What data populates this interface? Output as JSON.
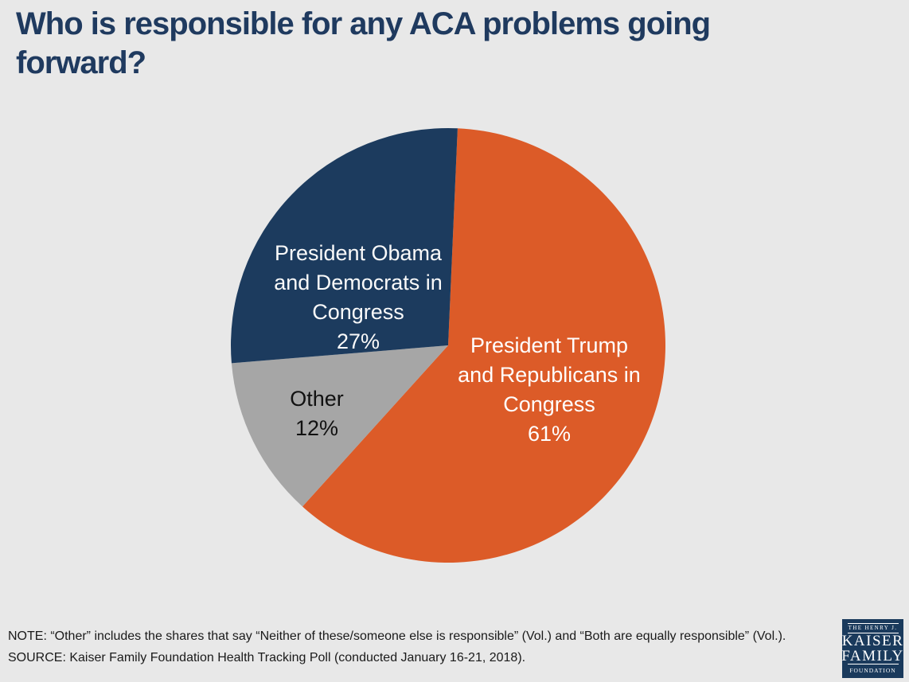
{
  "title_display": "Who is responsible for any ACA problems going\nforward?",
  "chart_data": {
    "type": "pie",
    "title": "Who is responsible for any ACA problems going forward?",
    "start_angle_deg": 2.5,
    "direction": "clockwise",
    "legend_position": "none",
    "labels_inside_slices": true,
    "slices": [
      {
        "id": "trump",
        "label": "President Trump and Republicans in Congress",
        "value": 61,
        "unit": "%",
        "color": "#dc5b28",
        "text_color": "#ffffff",
        "label_lines": "President Trump\nand Republicans in\nCongress\n61%"
      },
      {
        "id": "other",
        "label": "Other",
        "value": 12,
        "unit": "%",
        "color": "#a6a6a6",
        "text_color": "#111111",
        "label_lines": "Other\n12%"
      },
      {
        "id": "obama",
        "label": "President Obama and Democrats in Congress",
        "value": 27,
        "unit": "%",
        "color": "#1c3b5e",
        "text_color": "#fafafa",
        "label_lines": "President Obama\nand Democrats in\nCongress\n27%"
      }
    ]
  },
  "footer": {
    "note": "NOTE: “Other” includes the shares that say “Neither of these/someone else is responsible” (Vol.) and “Both are equally responsible” (Vol.).",
    "source": "SOURCE: Kaiser Family Foundation Health Tracking Poll (conducted January 16-21, 2018)."
  },
  "logo": {
    "top_text": "THE HENRY J.",
    "name_line1": "KAISER",
    "name_line2": "FAMILY",
    "bottom_text": "FOUNDATION",
    "background": "#1a3a5c"
  },
  "colors": {
    "title": "#1f3a5f",
    "background": "#e8e8e8",
    "footer_text": "#1a1a1a"
  }
}
